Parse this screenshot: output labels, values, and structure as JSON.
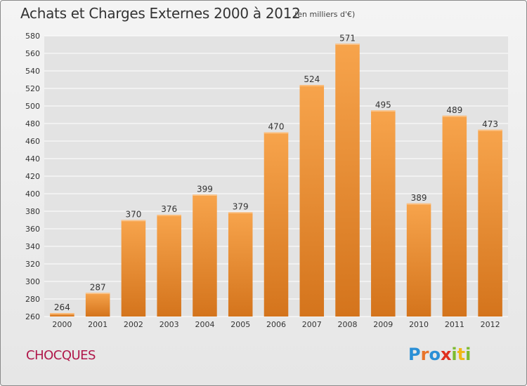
{
  "header": {
    "title": "Achats et Charges Externes 2000 à 2012",
    "unit": "(en milliers d'€)"
  },
  "commune": "CHOCQUES",
  "logo": {
    "text": "Proxiti",
    "parts": [
      "P",
      "r",
      "o",
      "x",
      "i",
      "t",
      "i"
    ]
  },
  "colors": {
    "bar_top": "#f7a44c",
    "bar_bottom": "#d4741c",
    "grid": "#ffffff",
    "commune": "#b0174a"
  },
  "chart_data": {
    "type": "bar",
    "title": "Achats et Charges Externes 2000 à 2012",
    "subtitle": "(en milliers d'€)",
    "xlabel": "",
    "ylabel": "",
    "categories": [
      "2000",
      "2001",
      "2002",
      "2003",
      "2004",
      "2005",
      "2006",
      "2007",
      "2008",
      "2009",
      "2010",
      "2011",
      "2012"
    ],
    "values": [
      264,
      287,
      370,
      376,
      399,
      379,
      470,
      524,
      571,
      495,
      389,
      489,
      473
    ],
    "ylim": [
      260,
      580
    ],
    "yticks": [
      260,
      280,
      300,
      320,
      340,
      360,
      380,
      400,
      420,
      440,
      460,
      480,
      500,
      520,
      540,
      560,
      580
    ],
    "grid": true,
    "data_labels": true
  }
}
